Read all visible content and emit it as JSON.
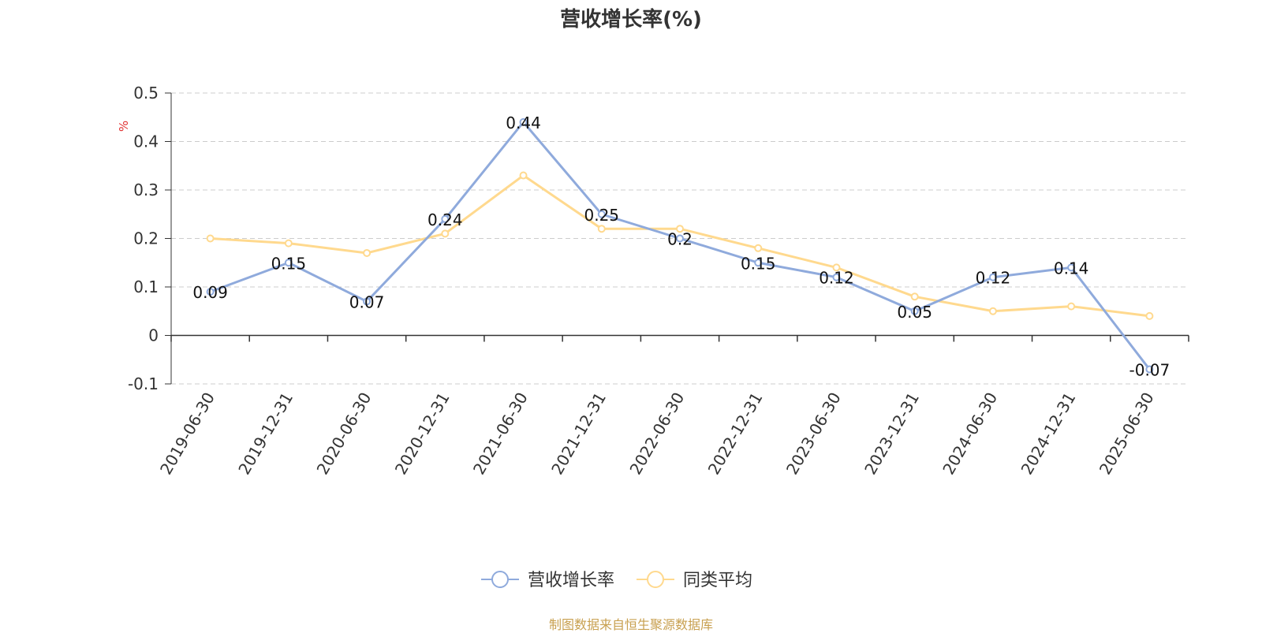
{
  "chart_data": {
    "type": "line",
    "title": "营收增长率(%)",
    "ylabel": "%",
    "xlabel": "",
    "categories": [
      "2019-06-30",
      "2019-12-31",
      "2020-06-30",
      "2020-12-31",
      "2021-06-30",
      "2021-12-31",
      "2022-06-30",
      "2022-12-31",
      "2023-06-30",
      "2023-12-31",
      "2024-06-30",
      "2024-12-31",
      "2025-06-30"
    ],
    "series": [
      {
        "name": "营收增长率",
        "color": "#8FAADC",
        "values": [
          0.09,
          0.15,
          0.07,
          0.24,
          0.44,
          0.25,
          0.2,
          0.15,
          0.12,
          0.05,
          0.12,
          0.14,
          -0.07
        ],
        "labels": [
          "0.09",
          "0.15",
          "0.07",
          "0.24",
          "0.44",
          "0.25",
          "0.2",
          "0.15",
          "0.12",
          "0.05",
          "0.12",
          "0.14",
          "-0.07"
        ]
      },
      {
        "name": "同类平均",
        "color": "#FFD98E",
        "values": [
          0.2,
          0.19,
          0.17,
          0.21,
          0.33,
          0.22,
          0.22,
          0.18,
          0.14,
          0.08,
          0.05,
          0.06,
          0.04
        ]
      }
    ],
    "ylim": [
      -0.1,
      0.5
    ],
    "yticks": [
      "-0.1",
      "0",
      "0.1",
      "0.2",
      "0.3",
      "0.4",
      "0.5"
    ],
    "grid": true,
    "legend_position": "bottom-center"
  },
  "source_note": "制图数据来自恒生聚源数据库",
  "colors": {
    "ylabel": "#E03030",
    "source": "#C8A050",
    "axis": "#333333",
    "grid": "#CCCCCC"
  }
}
